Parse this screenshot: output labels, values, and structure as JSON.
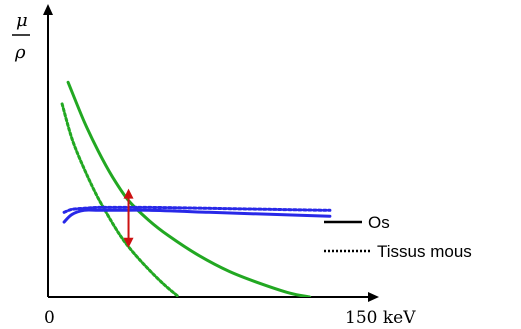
{
  "chart_data": {
    "type": "line",
    "title": "",
    "ylabel": {
      "numerator": "μ",
      "denominator": "ρ"
    },
    "xlabel": "",
    "x_ticks": [
      {
        "value": 0,
        "label": "0"
      },
      {
        "value": 150,
        "label": "150 keV"
      }
    ],
    "x_unit": "keV",
    "xlim": [
      0,
      150
    ],
    "ylim": [
      0,
      10
    ],
    "grid": false,
    "legend": {
      "placement": "bottom-right",
      "entries": [
        {
          "label": "Os",
          "style": "solid"
        },
        {
          "label": "Tissus mous",
          "style": "dotted"
        }
      ]
    },
    "series": [
      {
        "style": "solid",
        "color": "#22a822",
        "x": [
          10,
          18,
          25,
          32,
          40,
          50,
          60,
          75,
          90,
          105,
          120,
          130
        ],
        "y": [
          10.9,
          8.9,
          7.4,
          6.1,
          4.9,
          3.9,
          3.1,
          2.1,
          1.3,
          0.7,
          0.2,
          0
        ]
      },
      {
        "style": "dotted",
        "color": "#22a822",
        "x": [
          7,
          12,
          18,
          24,
          30,
          36,
          42,
          50,
          58,
          65
        ],
        "y": [
          9.8,
          8.0,
          6.5,
          5.2,
          4.1,
          3.1,
          2.3,
          1.4,
          0.6,
          0
        ]
      },
      {
        "style": "solid",
        "color": "#2828e8",
        "x": [
          8,
          12,
          18,
          25,
          35,
          50,
          80,
          110,
          140
        ],
        "y": [
          3.8,
          4.2,
          4.4,
          4.4,
          4.4,
          4.4,
          4.3,
          4.2,
          4.1
        ]
      },
      {
        "style": "dotted",
        "color": "#2828e8",
        "x": [
          8,
          12,
          18,
          25,
          35,
          50,
          80,
          110,
          140
        ],
        "y": [
          4.3,
          4.45,
          4.5,
          4.55,
          4.55,
          4.55,
          4.5,
          4.45,
          4.4
        ]
      }
    ],
    "annotations": [
      {
        "type": "double-arrow",
        "color": "#cc1111",
        "x": 40,
        "y_from": 5.5,
        "y_to": 2.5
      }
    ]
  }
}
